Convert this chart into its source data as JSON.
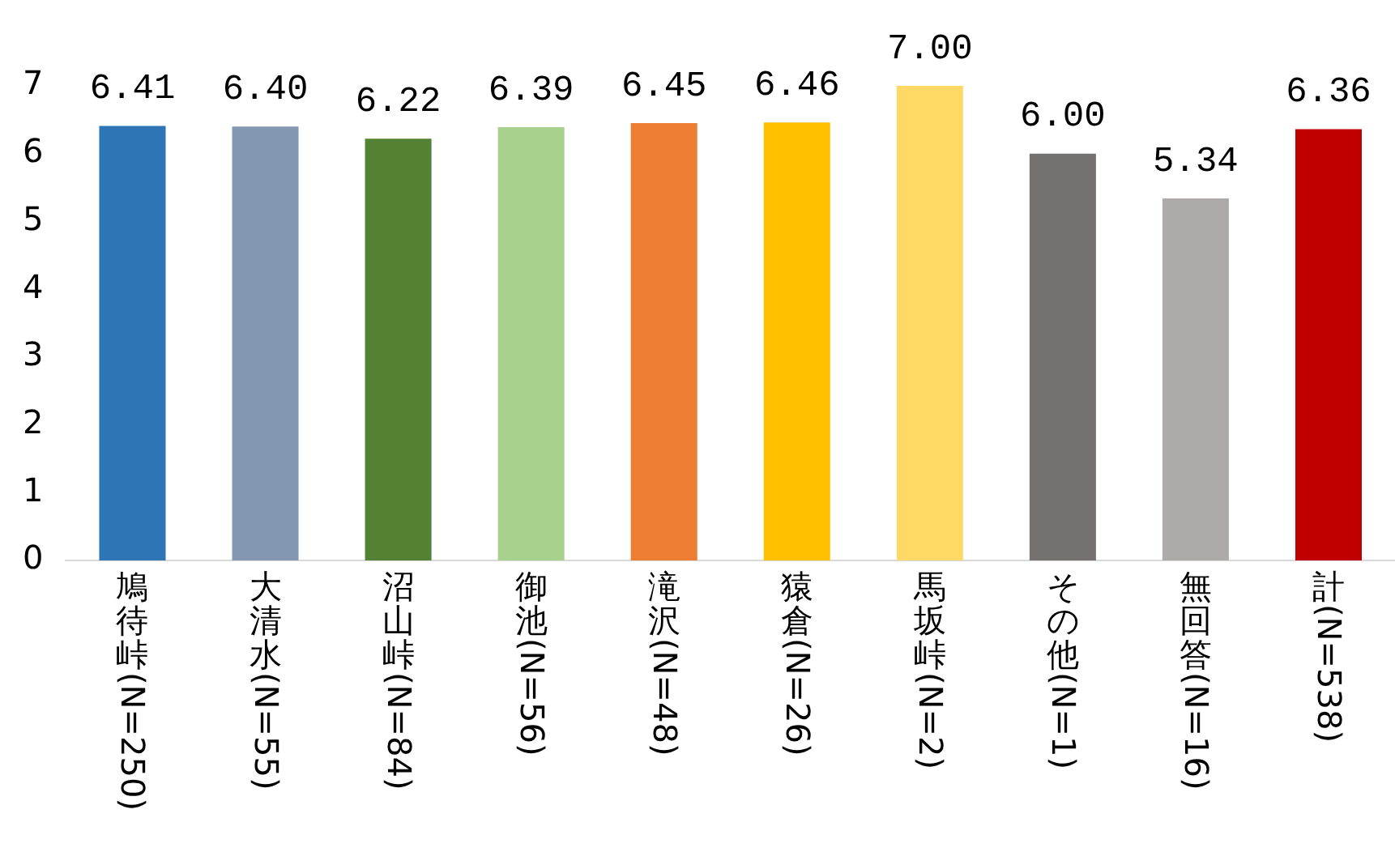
{
  "chart_data": {
    "type": "bar",
    "categories": [
      "鳩待峠(N=250)",
      "大清水(N=55)",
      "沼山峠(N=84)",
      "御池(N=56)",
      "滝沢(N=48)",
      "猿倉(N=26)",
      "馬坂峠(N=2)",
      "その他(N=1)",
      "無回答(N=16)",
      "計(N=538)"
    ],
    "values": [
      6.41,
      6.4,
      6.22,
      6.39,
      6.45,
      6.46,
      7.0,
      6.0,
      5.34,
      6.36
    ],
    "value_labels": [
      "6.41",
      "6.40",
      "6.22",
      "6.39",
      "6.45",
      "6.46",
      "7.00",
      "6.00",
      "5.34",
      "6.36"
    ],
    "colors": [
      "#2e75b6",
      "#8497b0",
      "#548235",
      "#a9d18e",
      "#ed7d31",
      "#ffc000",
      "#ffd966",
      "#767171",
      "#aeaaaa",
      "#c00000"
    ],
    "ylim": [
      0,
      7
    ],
    "yticks": [
      0,
      1,
      2,
      3,
      4,
      5,
      6,
      7
    ],
    "grid": false,
    "legend": false
  }
}
